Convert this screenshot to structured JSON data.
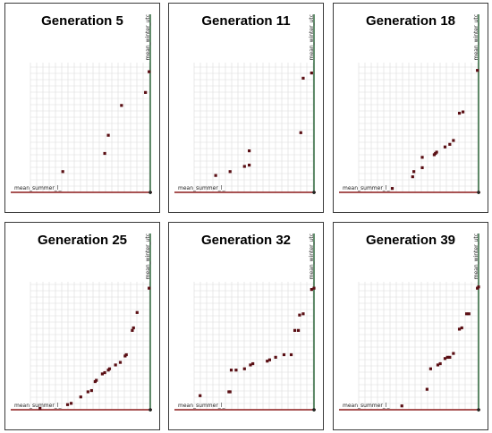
{
  "colors": {
    "x_axis": "#8b1a1a",
    "y_axis": "#1f5c2e",
    "grid": "#dcdcdc",
    "point": "#5a0f14",
    "marker_fill": "#e8e8e8"
  },
  "chart_data": [
    {
      "type": "scatter",
      "title": "Generation 5",
      "xlabel": "mean_summer_l_",
      "ylabel": "mean_winter_utc",
      "xlim": [
        0,
        1
      ],
      "ylim": [
        0,
        1
      ],
      "grid": true,
      "points": [
        [
          0.27,
          0.16
        ],
        [
          0.62,
          0.3
        ],
        [
          0.65,
          0.44
        ],
        [
          0.76,
          0.67
        ],
        [
          0.96,
          0.77
        ],
        [
          0.99,
          0.93
        ]
      ]
    },
    {
      "type": "scatter",
      "title": "Generation 11",
      "xlabel": "mean_summer_l_",
      "ylabel": "mean_winter_utc",
      "xlim": [
        0,
        1
      ],
      "ylim": [
        0,
        1
      ],
      "grid": true,
      "points": [
        [
          0.18,
          0.13
        ],
        [
          0.3,
          0.16
        ],
        [
          0.42,
          0.2
        ],
        [
          0.46,
          0.21
        ],
        [
          0.46,
          0.32
        ],
        [
          0.89,
          0.46
        ],
        [
          0.91,
          0.88
        ],
        [
          0.98,
          0.92
        ]
      ]
    },
    {
      "type": "scatter",
      "title": "Generation 18",
      "xlabel": "mean_summer_l_",
      "ylabel": "mean_winter_utc",
      "xlim": [
        0,
        1
      ],
      "ylim": [
        0,
        1
      ],
      "grid": true,
      "points": [
        [
          0.28,
          0.03
        ],
        [
          0.45,
          0.12
        ],
        [
          0.46,
          0.16
        ],
        [
          0.53,
          0.19
        ],
        [
          0.53,
          0.27
        ],
        [
          0.63,
          0.29
        ],
        [
          0.64,
          0.3
        ],
        [
          0.65,
          0.31
        ],
        [
          0.72,
          0.35
        ],
        [
          0.76,
          0.37
        ],
        [
          0.79,
          0.4
        ],
        [
          0.84,
          0.61
        ],
        [
          0.87,
          0.62
        ],
        [
          0.99,
          0.94
        ]
      ]
    },
    {
      "type": "scatter",
      "title": "Generation 25",
      "xlabel": "mean_summer_l_",
      "ylabel": "mean_winter_utc",
      "xlim": [
        0,
        1
      ],
      "ylim": [
        0,
        1
      ],
      "grid": true,
      "points": [
        [
          0.08,
          0.01
        ],
        [
          0.31,
          0.04
        ],
        [
          0.34,
          0.05
        ],
        [
          0.42,
          0.1
        ],
        [
          0.48,
          0.14
        ],
        [
          0.51,
          0.15
        ],
        [
          0.54,
          0.22
        ],
        [
          0.55,
          0.23
        ],
        [
          0.6,
          0.28
        ],
        [
          0.62,
          0.29
        ],
        [
          0.65,
          0.31
        ],
        [
          0.66,
          0.32
        ],
        [
          0.71,
          0.35
        ],
        [
          0.75,
          0.37
        ],
        [
          0.79,
          0.42
        ],
        [
          0.8,
          0.43
        ],
        [
          0.85,
          0.62
        ],
        [
          0.86,
          0.64
        ],
        [
          0.89,
          0.76
        ],
        [
          0.99,
          0.95
        ]
      ]
    },
    {
      "type": "scatter",
      "title": "Generation 32",
      "xlabel": "mean_summer_l_",
      "ylabel": "mean_winter_utc",
      "xlim": [
        0,
        1
      ],
      "ylim": [
        0,
        1
      ],
      "grid": true,
      "points": [
        [
          0.05,
          0.11
        ],
        [
          0.29,
          0.14
        ],
        [
          0.3,
          0.14
        ],
        [
          0.31,
          0.31
        ],
        [
          0.35,
          0.31
        ],
        [
          0.42,
          0.32
        ],
        [
          0.47,
          0.35
        ],
        [
          0.49,
          0.36
        ],
        [
          0.61,
          0.38
        ],
        [
          0.63,
          0.39
        ],
        [
          0.68,
          0.41
        ],
        [
          0.75,
          0.43
        ],
        [
          0.81,
          0.43
        ],
        [
          0.84,
          0.62
        ],
        [
          0.87,
          0.62
        ],
        [
          0.88,
          0.74
        ],
        [
          0.91,
          0.75
        ],
        [
          0.98,
          0.94
        ],
        [
          1.0,
          0.95
        ]
      ]
    },
    {
      "type": "scatter",
      "title": "Generation 39",
      "xlabel": "mean_summer_l_",
      "ylabel": "mean_winter_utc",
      "xlim": [
        0,
        1
      ],
      "ylim": [
        0,
        1
      ],
      "grid": true,
      "points": [
        [
          0.36,
          0.03
        ],
        [
          0.57,
          0.16
        ],
        [
          0.6,
          0.32
        ],
        [
          0.66,
          0.35
        ],
        [
          0.68,
          0.36
        ],
        [
          0.72,
          0.4
        ],
        [
          0.74,
          0.41
        ],
        [
          0.76,
          0.41
        ],
        [
          0.79,
          0.44
        ],
        [
          0.84,
          0.63
        ],
        [
          0.86,
          0.64
        ],
        [
          0.9,
          0.75
        ],
        [
          0.92,
          0.75
        ],
        [
          0.99,
          0.95
        ],
        [
          1.0,
          0.96
        ]
      ]
    }
  ]
}
